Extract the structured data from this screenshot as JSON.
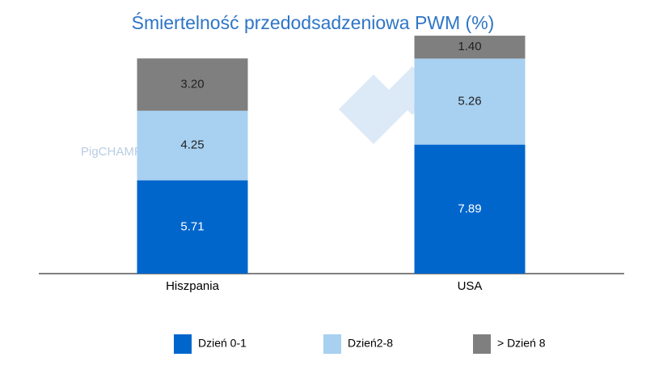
{
  "chart_data": {
    "type": "stacked_bar",
    "title": "Śmiertelność przedodsadzeniowa PWM (%)",
    "watermark": "PigCHAMP Pro Europa",
    "categories": [
      "Hiszpania",
      "USA"
    ],
    "series": [
      {
        "name": "Dzień 0-1",
        "color": "#0066cc",
        "values": [
          5.71,
          7.89
        ],
        "value_labels": [
          "5.71",
          "7.89"
        ]
      },
      {
        "name": "Dzień2-8",
        "color": "#a7d0f1",
        "values": [
          4.25,
          5.26
        ],
        "value_labels": [
          "4.25",
          "5.26"
        ]
      },
      {
        "name": "> Dzień 8",
        "color": "#7f7f7f",
        "values": [
          3.2,
          1.4
        ],
        "value_labels": [
          "3.20",
          "1.40"
        ]
      }
    ],
    "legend": "bottom"
  }
}
